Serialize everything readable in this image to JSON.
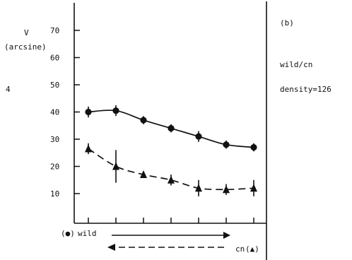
{
  "panel_label": "(b)",
  "stray_label": "4",
  "right_text": {
    "line1": "wild/cn",
    "line2": "density=126"
  },
  "xaxis_text": {
    "left_symbol": "(●)",
    "left_word": "wild",
    "right_word": "cn",
    "right_symbol": "(▲)"
  },
  "chart_data": {
    "type": "line",
    "title": "",
    "ylabel_line1": "V",
    "ylabel_line2": "(arcsine)",
    "xlabel": "",
    "ylim": [
      0,
      80
    ],
    "yticks": [
      10,
      20,
      30,
      40,
      50,
      60,
      70
    ],
    "x": [
      1,
      2,
      3,
      4,
      5,
      6,
      7
    ],
    "grid": false,
    "series": [
      {
        "marker": "circle",
        "line_style": "solid",
        "values": [
          40,
          40.5,
          37,
          34,
          31,
          28,
          27
        ],
        "errors": [
          2,
          2,
          1.5,
          1.5,
          2,
          1.5,
          1.5
        ]
      },
      {
        "marker": "triangle",
        "line_style": "dashed",
        "values": [
          26.5,
          20,
          17,
          15,
          12,
          11.5,
          12
        ],
        "errors": [
          2,
          6,
          1,
          2,
          3,
          2,
          3
        ]
      }
    ],
    "arrows": [
      {
        "direction": "right",
        "line_style": "solid"
      },
      {
        "direction": "left",
        "line_style": "dashed"
      }
    ]
  }
}
